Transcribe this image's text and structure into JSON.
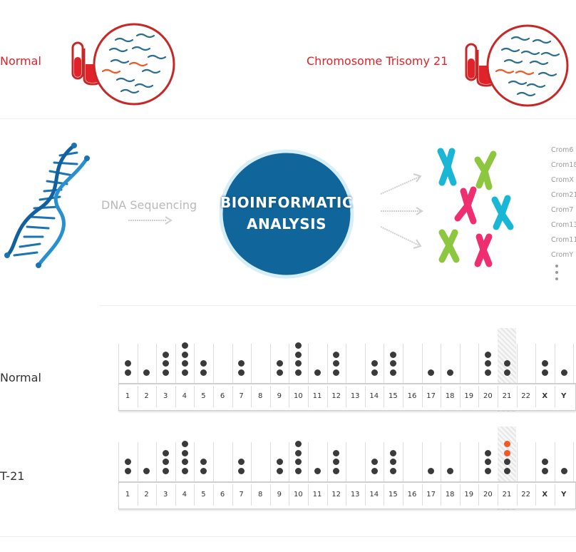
{
  "top": {
    "normal_label": "Normal",
    "trisomy_label": "Chromosome Trisomy 21"
  },
  "middle": {
    "sequencing_label": "DNA Sequencing",
    "bio_line1": "BIOINFORMATIC",
    "bio_line2": "ANALYSIS",
    "crom_list": [
      "Crom6",
      "Crom18",
      "CromX",
      "Crom21",
      "Crom7",
      "Crom13",
      "Crom11",
      "CromY"
    ],
    "colors": {
      "blue": "#10659a",
      "red": "#e0222a",
      "cyan": "#19b6d6",
      "green": "#8dc63f",
      "pink": "#ee2e6e",
      "orange": "#f15a24"
    }
  },
  "karyotype": {
    "labels": [
      "1",
      "2",
      "3",
      "4",
      "5",
      "6",
      "7",
      "8",
      "9",
      "10",
      "11",
      "12",
      "13",
      "14",
      "15",
      "16",
      "17",
      "18",
      "19",
      "20",
      "21",
      "22",
      "X",
      "Y"
    ],
    "highlight": "21",
    "rows": [
      {
        "label": "Normal",
        "counts": [
          2,
          1,
          3,
          4,
          2,
          0,
          2,
          0,
          2,
          4,
          1,
          3,
          0,
          2,
          3,
          0,
          1,
          1,
          0,
          3,
          2,
          0,
          2,
          1
        ],
        "extra": []
      },
      {
        "label": "T-21",
        "counts": [
          2,
          1,
          3,
          4,
          2,
          0,
          2,
          0,
          2,
          4,
          1,
          3,
          0,
          2,
          3,
          0,
          1,
          1,
          0,
          3,
          2,
          0,
          2,
          1
        ],
        "extra": [
          {
            "chrom": "21",
            "count": 2,
            "color": "#f15a24"
          }
        ]
      }
    ]
  }
}
